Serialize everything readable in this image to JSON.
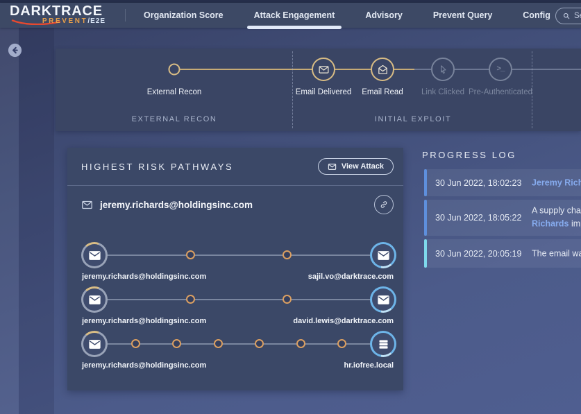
{
  "brand": {
    "name": "DARKTRACE",
    "product": "PREVENT",
    "suffix": "/E2E"
  },
  "nav": {
    "items": [
      {
        "label": "Organization Score",
        "active": false
      },
      {
        "label": "Attack Engagement",
        "active": true
      },
      {
        "label": "Advisory",
        "active": false
      },
      {
        "label": "Prevent Query",
        "active": false
      },
      {
        "label": "Config",
        "active": false
      }
    ],
    "search_placeholder": "Search"
  },
  "kill_chain": {
    "phases": [
      {
        "label": "EXTERNAL RECON"
      },
      {
        "label": "INITIAL EXPLOIT"
      }
    ],
    "steps": [
      {
        "label": "External Recon",
        "icon": "dot",
        "state": "done"
      },
      {
        "label": "Email Delivered",
        "icon": "envelope",
        "state": "done"
      },
      {
        "label": "Email Read",
        "icon": "envelope-open",
        "state": "done"
      },
      {
        "label": "Link Clicked",
        "icon": "cursor",
        "state": "pending"
      },
      {
        "label": "Pre-Authenticated",
        "icon": "terminal",
        "state": "pending"
      }
    ]
  },
  "pathways": {
    "title": "HIGHEST RISK PATHWAYS",
    "view_attack_label": "View Attack",
    "source_email": "jeremy.richards@holdingsinc.com",
    "rows": [
      {
        "from": "jeremy.richards@holdingsinc.com",
        "to": "sajil.vo@darktrace.com",
        "hops": 2,
        "target_icon": "envelope-filled"
      },
      {
        "from": "jeremy.richards@holdingsinc.com",
        "to": "david.lewis@darktrace.com",
        "hops": 2,
        "target_icon": "envelope-filled"
      },
      {
        "from": "jeremy.richards@holdingsinc.com",
        "to": "hr.iofree.local",
        "hops": 6,
        "target_icon": "server"
      }
    ]
  },
  "progress_log": {
    "title": "PROGRESS LOG",
    "entries": [
      {
        "timestamp": "30 Jun 2022, 18:02:23",
        "accent": "#5e8fdd",
        "message_lines": [
          [
            {
              "text": "Jeremy Richar",
              "highlight": true
            }
          ]
        ]
      },
      {
        "timestamp": "30 Jun 2022, 18:05:22",
        "accent": "#5e8fdd",
        "message_lines": [
          [
            {
              "text": "A supply chain",
              "highlight": false
            }
          ],
          [
            {
              "text": "Richards",
              "highlight": true
            },
            {
              "text": " impe",
              "highlight": false
            }
          ]
        ]
      },
      {
        "timestamp": "30 Jun 2022, 20:05:19",
        "accent": "#7ed9ec",
        "message_lines": [
          [
            {
              "text": "The email was",
              "highlight": false
            }
          ]
        ]
      }
    ]
  },
  "colors": {
    "gold": "#d8bc84",
    "pending_gray": "#78839b",
    "hop_ring": "#db9f61",
    "target_ring": "#6db4e8",
    "link_text": "#86abee",
    "bar_blue": "#5e8fdd",
    "bar_cyan": "#7ed9ec"
  }
}
